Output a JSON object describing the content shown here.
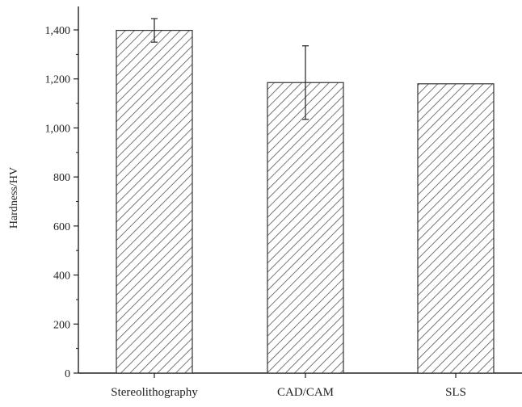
{
  "chart_data": {
    "type": "bar",
    "title": "",
    "xlabel": "",
    "ylabel": "Hardness/HV",
    "ylim": [
      0,
      1500
    ],
    "yticks": [
      0,
      200,
      400,
      600,
      800,
      1000,
      1200,
      1400
    ],
    "ytick_labels": [
      "0",
      "200",
      "400",
      "600",
      "800",
      "1,000",
      "1,200",
      "1,400"
    ],
    "categories": [
      "Stereolithography",
      "CAD/CAM",
      "SLS"
    ],
    "values": [
      1398,
      1185,
      1180
    ],
    "error_lower": [
      1350,
      1035,
      null
    ],
    "error_upper": [
      1446,
      1335,
      null
    ],
    "bar_fill": "#ffffff",
    "hatch_color": "#555555",
    "grid": false,
    "legend": "none"
  }
}
